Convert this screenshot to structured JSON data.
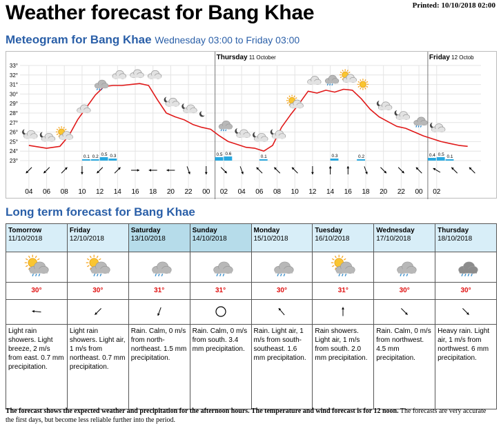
{
  "page": {
    "title": "Weather forecast for Bang Khae",
    "printed": "Printed: 10/10/2018 02:00"
  },
  "meteogram": {
    "heading": "Meteogram for Bang Khae",
    "range": "Wednesday 03:00 to Friday 03:00",
    "day_markers": [
      {
        "day": "Thursday",
        "date": "11 October"
      },
      {
        "day": "Friday",
        "date": "12 Octob"
      }
    ]
  },
  "chart_data": {
    "type": "line",
    "ylim": [
      23,
      33
    ],
    "y_ticks": [
      "23°",
      "24°",
      "25°",
      "26°",
      "27°",
      "28°",
      "29°",
      "30°",
      "31°",
      "32°",
      "33°"
    ],
    "x_ticks": [
      "04",
      "06",
      "08",
      "10",
      "12",
      "14",
      "16",
      "18",
      "20",
      "22",
      "00",
      "02",
      "04",
      "06",
      "08",
      "10",
      "12",
      "14",
      "16",
      "18",
      "20",
      "22",
      "00",
      "02"
    ],
    "series": [
      {
        "values": [
          [
            3.0,
            24.6
          ],
          [
            5.0,
            24.3
          ],
          [
            6.5,
            24.5
          ],
          [
            7.5,
            25.6
          ],
          [
            8.5,
            27.3
          ],
          [
            9.5,
            28.6
          ],
          [
            10.5,
            29.9
          ],
          [
            11.5,
            30.8
          ],
          [
            12.5,
            30.9
          ],
          [
            13.5,
            30.9
          ],
          [
            14.5,
            31.0
          ],
          [
            15.5,
            31.1
          ],
          [
            16.5,
            30.9
          ],
          [
            17.5,
            29.4
          ],
          [
            18.5,
            28.0
          ],
          [
            19.5,
            27.6
          ],
          [
            20.5,
            27.3
          ],
          [
            21.5,
            26.8
          ],
          [
            22.5,
            26.5
          ],
          [
            23.5,
            26.3
          ],
          [
            24.5,
            25.6
          ],
          [
            25.5,
            25.0
          ],
          [
            26.5,
            24.7
          ],
          [
            27.5,
            24.4
          ],
          [
            28.5,
            24.3
          ],
          [
            29.5,
            24.0
          ],
          [
            30.5,
            24.6
          ],
          [
            31.5,
            26.5
          ],
          [
            32.5,
            27.8
          ],
          [
            33.5,
            29.0
          ],
          [
            34.5,
            30.3
          ],
          [
            35.5,
            30.1
          ],
          [
            36.5,
            30.4
          ],
          [
            37.5,
            30.2
          ],
          [
            38.5,
            30.5
          ],
          [
            39.5,
            30.4
          ],
          [
            40.5,
            29.5
          ],
          [
            41.5,
            28.4
          ],
          [
            42.5,
            27.6
          ],
          [
            43.5,
            27.1
          ],
          [
            44.5,
            26.6
          ],
          [
            45.5,
            26.4
          ],
          [
            46.5,
            26.0
          ],
          [
            47.5,
            25.6
          ],
          [
            48.5,
            25.3
          ],
          [
            49.5,
            25.0
          ],
          [
            50.5,
            24.8
          ],
          [
            51.5,
            24.6
          ],
          [
            52.5,
            24.5
          ]
        ]
      }
    ],
    "precipitation": [
      {
        "x": 9.5,
        "mm": 0.1,
        "label": "0.1"
      },
      {
        "x": 10.5,
        "mm": 0.2,
        "label": "0.2"
      },
      {
        "x": 11.5,
        "mm": 0.5,
        "label": "0.5"
      },
      {
        "x": 12.5,
        "mm": 0.3,
        "label": "0.3"
      },
      {
        "x": 24.5,
        "mm": 0.5,
        "label": "0.5"
      },
      {
        "x": 25.5,
        "mm": 0.6,
        "label": "0.6"
      },
      {
        "x": 29.5,
        "mm": 0.1,
        "label": "0.1"
      },
      {
        "x": 37.5,
        "mm": 0.3,
        "label": "0.3"
      },
      {
        "x": 40.5,
        "mm": 0.2,
        "label": "0.2"
      },
      {
        "x": 48.5,
        "mm": 0.4,
        "label": "0.4"
      },
      {
        "x": 49.5,
        "mm": 0.5,
        "label": "0.5"
      },
      {
        "x": 50.5,
        "mm": 0.1,
        "label": "0.1"
      }
    ],
    "wind_directions_deg": [
      225,
      225,
      45,
      180,
      225,
      45,
      90,
      270,
      270,
      160,
      180,
      135,
      160,
      315,
      315,
      315,
      180,
      0,
      0,
      160,
      135,
      135,
      315,
      300,
      315,
      315
    ],
    "symbols": [
      "cloud-moon",
      "cloud-moon",
      "sun-cloud",
      "cloud-sun",
      "rain-cloud",
      "cloud-sun",
      "cloud-sun",
      "cloud",
      "cloud-moon",
      "cloud-moon",
      "moon",
      "rain-cloud",
      "cloud-moon",
      "cloud-moon",
      "cloud-moon",
      "sun-cloud",
      "cloud",
      "rain-cloud",
      "sun-cloud",
      "sun",
      "cloud-moon",
      "cloud-moon",
      "rain-cloud",
      "cloud-moon"
    ]
  },
  "long_term": {
    "heading": "Long term forecast for Bang Khae",
    "days": [
      {
        "day": "Tomorrow",
        "date": "11/10/2018",
        "weekend": false,
        "icon": "rain-showers-sun-icon",
        "temp": "30°",
        "wind_deg": 275,
        "calm": false,
        "desc": "Light rain showers. Light breeze, 2 m/s from east. 0.7 mm precipitation."
      },
      {
        "day": "Friday",
        "date": "12/10/2018",
        "weekend": false,
        "icon": "rain-showers-sun-icon",
        "temp": "30°",
        "wind_deg": 225,
        "calm": false,
        "desc": "Light rain showers. Light air, 1 m/s from northeast. 0.7 mm precipitation."
      },
      {
        "day": "Saturday",
        "date": "13/10/2018",
        "weekend": true,
        "icon": "rain-cloud-icon",
        "temp": "31°",
        "wind_deg": 200,
        "calm": false,
        "desc": "Rain. Calm, 0 m/s from north-northeast. 1.5 mm precipitation."
      },
      {
        "day": "Sunday",
        "date": "14/10/2018",
        "weekend": true,
        "icon": "rain-cloud-icon",
        "temp": "31°",
        "wind_deg": 0,
        "calm": true,
        "desc": "Rain. Calm, 0 m/s from south. 3.4 mm precipitation."
      },
      {
        "day": "Monday",
        "date": "15/10/2018",
        "weekend": false,
        "icon": "rain-cloud-icon",
        "temp": "30°",
        "wind_deg": 320,
        "calm": false,
        "desc": "Rain. Light air, 1 m/s from south-southeast. 1.6 mm precipitation."
      },
      {
        "day": "Tuesday",
        "date": "16/10/2018",
        "weekend": false,
        "icon": "rain-showers-sun-icon",
        "temp": "31°",
        "wind_deg": 0,
        "calm": false,
        "desc": "Rain showers. Light air, 1 m/s from south. 2.0 mm precipitation."
      },
      {
        "day": "Wednesday",
        "date": "17/10/2018",
        "weekend": false,
        "icon": "rain-cloud-icon",
        "temp": "30°",
        "wind_deg": 135,
        "calm": false,
        "desc": "Rain. Calm, 0 m/s from northwest. 4.5 mm precipitation."
      },
      {
        "day": "Thursday",
        "date": "18/10/2018",
        "weekend": false,
        "icon": "heavy-rain-cloud-icon",
        "temp": "30°",
        "wind_deg": 135,
        "calm": false,
        "desc": "Heavy rain. Light air, 1 m/s from northwest. 6 mm precipitation."
      }
    ]
  },
  "footnote": {
    "bold": "The forecast shows the expected weather and precipitation for the afternoon hours. The temperature and wind forecast is for 12 noon.",
    "normal": " The forecasts are very accurate the first days, but become less reliable further into the period."
  },
  "colors": {
    "title_blue": "#2a5fa8",
    "temp_line": "#e01818",
    "precip": "#28a8e0",
    "header": "#d8eef8",
    "header_weekend": "#b6dcea"
  }
}
